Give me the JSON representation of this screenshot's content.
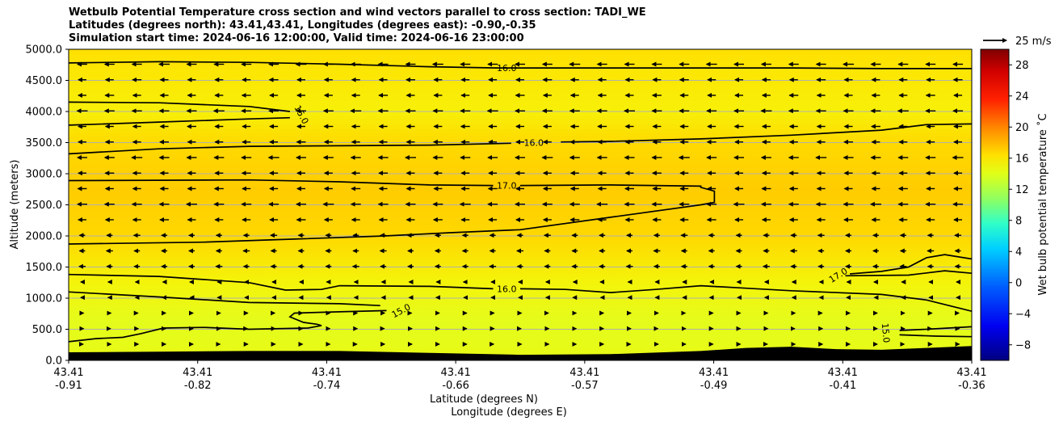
{
  "chart_data": {
    "type": "contour",
    "title_lines": [
      "Wetbulb Potential Temperature cross section and wind vectors parallel to cross section: TADI_WE",
      "Latitudes (degrees north): 43.41,43.41, Longitudes (degrees east): -0.90,-0.35",
      "Simulation start time: 2024-06-16 12:00:00, Valid time: 2024-06-16 23:00:00"
    ],
    "ylabel": "Altitude (meters)",
    "xlabel_lat": "Latitude (degrees N)",
    "xlabel_lon": "Longitude (degrees E)",
    "ylim": [
      0,
      5000
    ],
    "y_ticks": [
      "0.0",
      "500.0",
      "1000.0",
      "1500.0",
      "2000.0",
      "2500.0",
      "3000.0",
      "3500.0",
      "4000.0",
      "4500.0",
      "5000.0"
    ],
    "x_ticks": [
      {
        "lat": "43.41",
        "lon": "-0.91"
      },
      {
        "lat": "43.41",
        "lon": "-0.82"
      },
      {
        "lat": "43.41",
        "lon": "-0.74"
      },
      {
        "lat": "43.41",
        "lon": "-0.66"
      },
      {
        "lat": "43.41",
        "lon": "-0.57"
      },
      {
        "lat": "43.41",
        "lon": "-0.49"
      },
      {
        "lat": "43.41",
        "lon": "-0.41"
      },
      {
        "lat": "43.41",
        "lon": "-0.36"
      }
    ],
    "contour_labels": [
      {
        "text": "16.0",
        "x": 0.485,
        "alt": 4700,
        "angle": 0
      },
      {
        "text": "15.0",
        "x": 0.258,
        "alt": 3950,
        "angle": 62
      },
      {
        "text": "16.0",
        "x": 0.515,
        "alt": 3500,
        "angle": 0
      },
      {
        "text": "17.0",
        "x": 0.485,
        "alt": 2810,
        "angle": 0
      },
      {
        "text": "17.0",
        "x": 0.852,
        "alt": 1370,
        "angle": -32
      },
      {
        "text": "16.0",
        "x": 0.485,
        "alt": 1150,
        "angle": 0
      },
      {
        "text": "15.0",
        "x": 0.368,
        "alt": 800,
        "angle": -28
      },
      {
        "text": "15.0",
        "x": 0.905,
        "alt": 440,
        "angle": 85
      }
    ],
    "contour_lines": [
      {
        "level": 16.0,
        "points": [
          [
            0,
            4780
          ],
          [
            0.1,
            4800
          ],
          [
            0.2,
            4790
          ],
          [
            0.3,
            4760
          ],
          [
            0.4,
            4720
          ],
          [
            0.475,
            4700
          ],
          [
            0.5,
            4700
          ],
          [
            0.6,
            4700
          ],
          [
            0.7,
            4700
          ],
          [
            0.8,
            4700
          ],
          [
            0.9,
            4690
          ],
          [
            1.0,
            4690
          ]
        ]
      },
      {
        "level": 15.0,
        "points": [
          [
            0,
            4150
          ],
          [
            0.1,
            4140
          ],
          [
            0.2,
            4080
          ],
          [
            0.245,
            4000
          ]
        ]
      },
      {
        "level": 15.0,
        "points": [
          [
            0,
            3780
          ],
          [
            0.1,
            3830
          ],
          [
            0.2,
            3880
          ],
          [
            0.245,
            3900
          ]
        ]
      },
      {
        "level": 16.0,
        "points": [
          [
            0,
            3320
          ],
          [
            0.1,
            3400
          ],
          [
            0.2,
            3440
          ],
          [
            0.3,
            3450
          ],
          [
            0.4,
            3460
          ],
          [
            0.49,
            3490
          ]
        ]
      },
      {
        "level": 16.0,
        "points": [
          [
            0.545,
            3510
          ],
          [
            0.6,
            3520
          ],
          [
            0.7,
            3560
          ],
          [
            0.8,
            3620
          ],
          [
            0.9,
            3700
          ],
          [
            0.95,
            3790
          ],
          [
            1.0,
            3800
          ]
        ]
      },
      {
        "level": 17.0,
        "points": [
          [
            0,
            2890
          ],
          [
            0.2,
            2900
          ],
          [
            0.3,
            2870
          ],
          [
            0.4,
            2820
          ],
          [
            0.47,
            2810
          ]
        ]
      },
      {
        "level": 17.0,
        "points": [
          [
            0.5,
            2810
          ],
          [
            0.6,
            2820
          ],
          [
            0.7,
            2800
          ],
          [
            0.7,
            2780
          ],
          [
            0.715,
            2720
          ],
          [
            0.715,
            2540
          ],
          [
            0.7,
            2500
          ],
          [
            0.6,
            2300
          ],
          [
            0.5,
            2100
          ],
          [
            0.42,
            2050
          ],
          [
            0.35,
            2000
          ],
          [
            0.25,
            1950
          ],
          [
            0.15,
            1900
          ],
          [
            0,
            1870
          ]
        ]
      },
      {
        "level": 16.0,
        "points": [
          [
            0,
            1380
          ],
          [
            0.1,
            1350
          ],
          [
            0.2,
            1250
          ],
          [
            0.24,
            1130
          ],
          [
            0.28,
            1140
          ],
          [
            0.3,
            1200
          ],
          [
            0.4,
            1190
          ],
          [
            0.47,
            1150
          ]
        ]
      },
      {
        "level": 16.0,
        "points": [
          [
            0.5,
            1150
          ],
          [
            0.55,
            1140
          ],
          [
            0.6,
            1090
          ],
          [
            0.65,
            1140
          ],
          [
            0.7,
            1200
          ],
          [
            0.75,
            1160
          ],
          [
            0.8,
            1120
          ],
          [
            0.9,
            1060
          ],
          [
            0.95,
            970
          ],
          [
            1.0,
            790
          ]
        ]
      },
      {
        "level": 15.0,
        "points": [
          [
            0,
            1100
          ],
          [
            0.1,
            1020
          ],
          [
            0.2,
            930
          ],
          [
            0.3,
            910
          ],
          [
            0.345,
            880
          ]
        ]
      },
      {
        "level": 15.0,
        "points": [
          [
            0.352,
            800
          ],
          [
            0.3,
            780
          ],
          [
            0.25,
            760
          ],
          [
            0.245,
            700
          ],
          [
            0.26,
            610
          ],
          [
            0.275,
            580
          ],
          [
            0.28,
            560
          ],
          [
            0.265,
            520
          ],
          [
            0.2,
            500
          ],
          [
            0.15,
            530
          ],
          [
            0.105,
            520
          ],
          [
            0.08,
            430
          ],
          [
            0.06,
            370
          ],
          [
            0.03,
            350
          ],
          [
            0,
            300
          ]
        ]
      },
      {
        "level": 17.0,
        "points": [
          [
            0.865,
            1390
          ],
          [
            0.9,
            1430
          ],
          [
            0.93,
            1500
          ],
          [
            0.95,
            1650
          ],
          [
            0.97,
            1700
          ],
          [
            1.0,
            1630
          ]
        ]
      },
      {
        "level": 17.0,
        "points": [
          [
            0.86,
            1360
          ],
          [
            0.93,
            1370
          ],
          [
            0.97,
            1440
          ],
          [
            1.0,
            1400
          ]
        ]
      },
      {
        "level": 15.0,
        "points": [
          [
            0.92,
            480
          ],
          [
            0.95,
            500
          ],
          [
            1.0,
            540
          ]
        ]
      },
      {
        "level": 15.0,
        "points": [
          [
            0.92,
            410
          ],
          [
            0.96,
            390
          ],
          [
            1.0,
            380
          ]
        ]
      }
    ],
    "terrain": [
      [
        0,
        130
      ],
      [
        0.1,
        140
      ],
      [
        0.2,
        150
      ],
      [
        0.3,
        150
      ],
      [
        0.4,
        120
      ],
      [
        0.5,
        90
      ],
      [
        0.6,
        100
      ],
      [
        0.7,
        150
      ],
      [
        0.75,
        200
      ],
      [
        0.8,
        220
      ],
      [
        0.85,
        180
      ],
      [
        0.9,
        170
      ],
      [
        0.95,
        200
      ],
      [
        1.0,
        230
      ]
    ],
    "colorbar": {
      "label": "Wet bulb potential temperature ˚C",
      "vmin": -10,
      "vmax": 30,
      "ticks": [
        "−8",
        "−4",
        "0",
        "4",
        "8",
        "12",
        "16",
        "20",
        "24",
        "28"
      ],
      "tick_values": [
        -8,
        -4,
        0,
        4,
        8,
        12,
        16,
        20,
        24,
        28
      ]
    },
    "vector_key": "25 m/s",
    "colors": {
      "field_high": "#FFD400",
      "field_mid": "#F2F20A",
      "field_low": "#E0FF1E",
      "field_warm": "#FFC800",
      "terrain": "#000000",
      "contour": "#000000",
      "grid": "#b0b0b0"
    }
  }
}
